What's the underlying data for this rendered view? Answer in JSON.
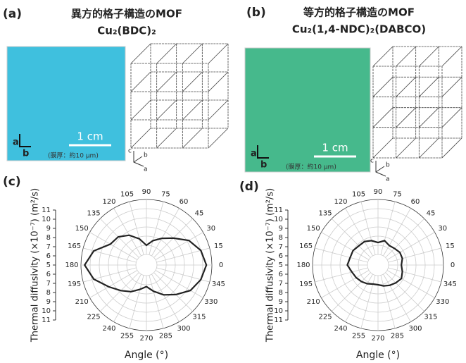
{
  "panels": [
    {
      "label": "(a)",
      "title": [
        "異方的格子構造のMOF",
        "Cu₂(BDC)₂"
      ],
      "scale": "1 cm",
      "thickness": "(膜厚：約10 μm)",
      "photo_axes": [
        "a",
        "b"
      ],
      "crystal_axes": [
        "c",
        "b",
        "a"
      ],
      "color": "#3fc0de"
    },
    {
      "label": "(b)",
      "title": [
        "等方的格子構造のMOF",
        "Cu₂(1,4-NDC)₂(DABCO)"
      ],
      "scale": "1 cm",
      "thickness": "(膜厚：約10 μm)",
      "photo_axes": [
        "a",
        "b"
      ],
      "crystal_axes": [
        "c",
        "b",
        "a"
      ],
      "color": "#46b98c"
    }
  ],
  "chart_data": [
    {
      "type": "polar",
      "panel_label": "(c)",
      "xlabel": "Angle (°)",
      "ylabel": "Thermal diffusivity (×10⁻⁷) (m²/s)",
      "theta": [
        0,
        15,
        30,
        45,
        60,
        75,
        90,
        105,
        120,
        135,
        150,
        165,
        180,
        195,
        210,
        225,
        240,
        255,
        270,
        285,
        300,
        315,
        330,
        345
      ],
      "values": [
        10.4,
        10.0,
        9.2,
        8.0,
        7.2,
        6.6,
        6.0,
        6.8,
        7.6,
        8.2,
        8.4,
        9.8,
        10.6,
        9.8,
        8.6,
        7.8,
        7.2,
        6.6,
        6.2,
        6.8,
        7.6,
        8.4,
        9.4,
        10.0
      ],
      "rlim": [
        5,
        11
      ],
      "rticks": [
        5,
        6,
        7,
        8,
        9,
        10,
        11
      ],
      "color": "#222222",
      "grid": true
    },
    {
      "type": "polar",
      "panel_label": "(d)",
      "xlabel": "Angle (°)",
      "ylabel": "Thermal diffusivity (×10⁻⁷) (m²/s)",
      "theta": [
        0,
        15,
        30,
        45,
        60,
        75,
        90,
        105,
        120,
        135,
        150,
        165,
        180,
        195,
        210,
        225,
        240,
        255,
        270,
        285,
        300,
        315,
        330,
        345
      ],
      "values": [
        6.4,
        6.6,
        6.6,
        6.4,
        6.3,
        6.6,
        6.3,
        6.6,
        6.8,
        6.8,
        7.0,
        7.0,
        7.2,
        6.8,
        6.6,
        6.4,
        6.2,
        6.0,
        6.0,
        6.2,
        6.4,
        6.6,
        6.8,
        6.6
      ],
      "rlim": [
        5,
        11
      ],
      "rticks": [
        5,
        6,
        7,
        8,
        9,
        10,
        11
      ],
      "color": "#222222",
      "grid": true
    }
  ]
}
